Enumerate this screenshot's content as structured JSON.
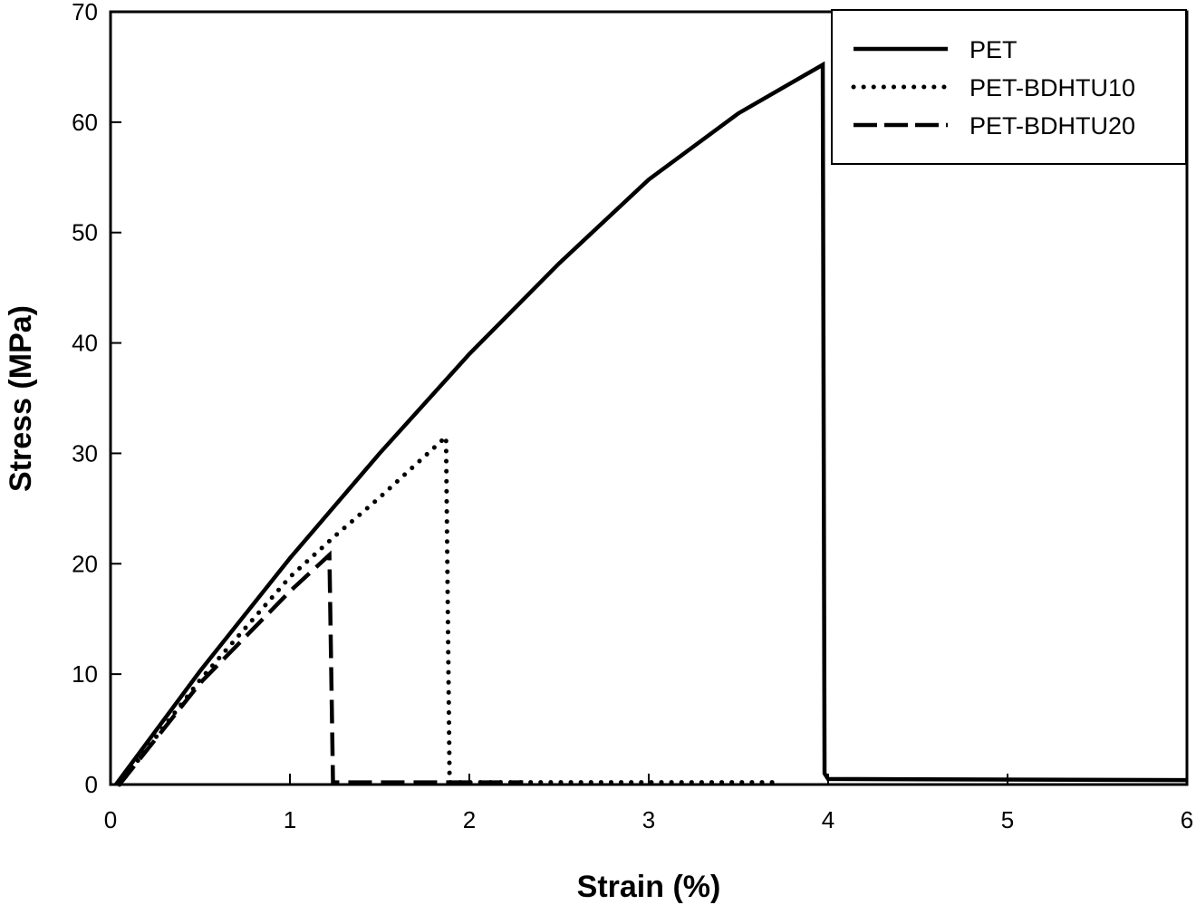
{
  "chart_data": {
    "type": "line",
    "title": "",
    "xlabel": "Strain (%)",
    "ylabel": "Stress (MPa)",
    "xlim": [
      0,
      6
    ],
    "ylim": [
      0,
      70
    ],
    "xticks": [
      0,
      1,
      2,
      3,
      4,
      5,
      6
    ],
    "yticks": [
      0,
      10,
      20,
      30,
      40,
      50,
      60,
      70
    ],
    "grid": false,
    "legend_position": "top-right",
    "series": [
      {
        "name": "PET",
        "style": "solid",
        "color": "#000000",
        "points": [
          [
            0.03,
            0
          ],
          [
            0.5,
            10.3
          ],
          [
            1,
            20.5
          ],
          [
            1.5,
            30
          ],
          [
            2,
            39
          ],
          [
            2.5,
            47.2
          ],
          [
            3,
            54.8
          ],
          [
            3.5,
            60.8
          ],
          [
            3.97,
            65.2
          ],
          [
            3.98,
            1
          ],
          [
            4.0,
            0.5
          ],
          [
            6,
            0.4
          ]
        ]
      },
      {
        "name": "PET-BDHTU10",
        "style": "dotted",
        "color": "#000000",
        "points": [
          [
            0.05,
            0
          ],
          [
            0.5,
            9.5
          ],
          [
            1,
            18.8
          ],
          [
            1.25,
            22.5
          ],
          [
            1.5,
            26
          ],
          [
            1.87,
            31.5
          ],
          [
            1.89,
            0.2
          ],
          [
            3.7,
            0.2
          ]
        ]
      },
      {
        "name": "PET-BDHTU20",
        "style": "dashed",
        "color": "#000000",
        "points": [
          [
            0.05,
            0
          ],
          [
            0.5,
            9.2
          ],
          [
            1,
            17.5
          ],
          [
            1.22,
            20.8
          ],
          [
            1.24,
            0.2
          ],
          [
            2.3,
            0.2
          ]
        ]
      }
    ]
  }
}
